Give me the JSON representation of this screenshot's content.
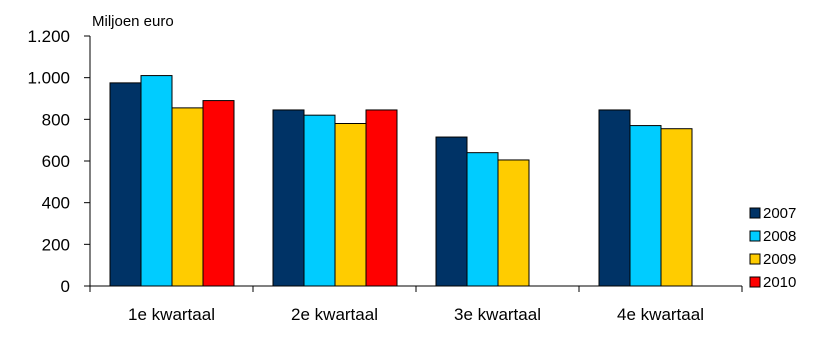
{
  "chart_data": {
    "type": "bar",
    "title": "",
    "ylabel": "Miljoen euro",
    "xlabel": "",
    "ylim": [
      0,
      1200
    ],
    "yticks": [
      0,
      200,
      400,
      600,
      800,
      1000,
      1200
    ],
    "ytick_labels": [
      "0",
      "200",
      "400",
      "600",
      "800",
      "1.000",
      "1.200"
    ],
    "categories": [
      "1e kwartaal",
      "2e kwartaal",
      "3e kwartaal",
      "4e kwartaal"
    ],
    "series": [
      {
        "name": "2007",
        "color": "#003366",
        "values": [
          975,
          845,
          715,
          845
        ]
      },
      {
        "name": "2008",
        "color": "#00CCFF",
        "values": [
          1010,
          820,
          640,
          770
        ]
      },
      {
        "name": "2009",
        "color": "#FFCC00",
        "values": [
          855,
          780,
          605,
          755
        ]
      },
      {
        "name": "2010",
        "color": "#FF0000",
        "values": [
          890,
          845,
          null,
          null
        ]
      }
    ],
    "grid": false,
    "legend_position": "right"
  }
}
